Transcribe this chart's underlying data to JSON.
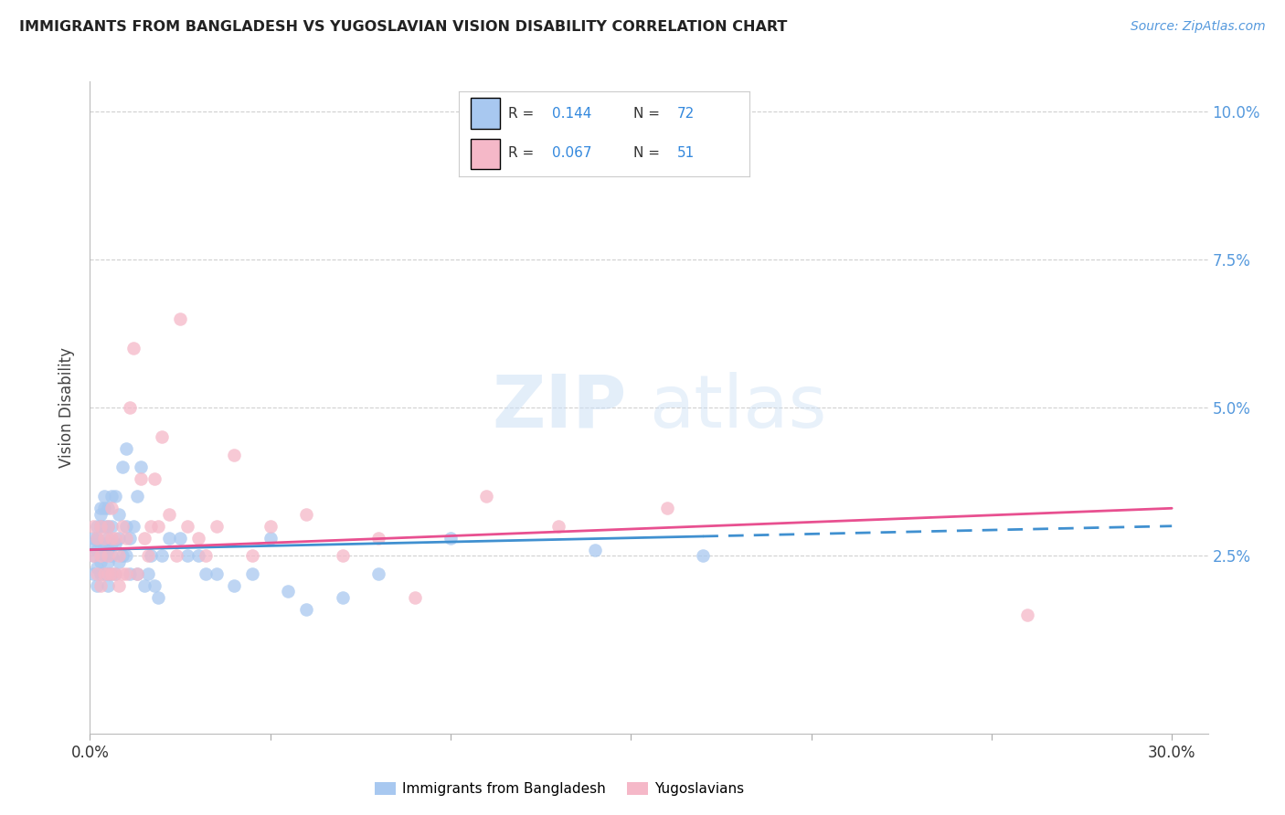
{
  "title": "IMMIGRANTS FROM BANGLADESH VS YUGOSLAVIAN VISION DISABILITY CORRELATION CHART",
  "source": "Source: ZipAtlas.com",
  "ylabel": "Vision Disability",
  "xlim": [
    0.0,
    0.31
  ],
  "ylim": [
    -0.005,
    0.105
  ],
  "yticks": [
    0.025,
    0.05,
    0.075,
    0.1
  ],
  "ytick_labels": [
    "2.5%",
    "5.0%",
    "7.5%",
    "10.0%"
  ],
  "grid_color": "#d0d0d0",
  "background_color": "#ffffff",
  "blue_color": "#a8c8f0",
  "pink_color": "#f5b8c8",
  "blue_line_color": "#4090d0",
  "pink_line_color": "#e85090",
  "r_blue": "0.144",
  "n_blue": "72",
  "r_pink": "0.067",
  "n_pink": "51",
  "legend_label_blue": "Immigrants from Bangladesh",
  "legend_label_pink": "Yugoslavians",
  "watermark_zip": "ZIP",
  "watermark_atlas": "atlas",
  "blue_scatter_x": [
    0.001,
    0.001,
    0.001,
    0.001,
    0.002,
    0.002,
    0.002,
    0.002,
    0.002,
    0.003,
    0.003,
    0.003,
    0.003,
    0.003,
    0.003,
    0.004,
    0.004,
    0.004,
    0.004,
    0.004,
    0.004,
    0.005,
    0.005,
    0.005,
    0.005,
    0.005,
    0.005,
    0.005,
    0.006,
    0.006,
    0.006,
    0.006,
    0.006,
    0.007,
    0.007,
    0.007,
    0.008,
    0.008,
    0.008,
    0.009,
    0.009,
    0.01,
    0.01,
    0.01,
    0.011,
    0.011,
    0.012,
    0.013,
    0.013,
    0.014,
    0.015,
    0.016,
    0.017,
    0.018,
    0.019,
    0.02,
    0.022,
    0.025,
    0.027,
    0.03,
    0.032,
    0.035,
    0.04,
    0.045,
    0.05,
    0.055,
    0.06,
    0.07,
    0.08,
    0.1,
    0.14,
    0.17
  ],
  "blue_scatter_y": [
    0.025,
    0.027,
    0.022,
    0.028,
    0.023,
    0.026,
    0.03,
    0.02,
    0.028,
    0.022,
    0.027,
    0.024,
    0.03,
    0.032,
    0.033,
    0.022,
    0.025,
    0.027,
    0.03,
    0.033,
    0.035,
    0.02,
    0.022,
    0.024,
    0.026,
    0.028,
    0.03,
    0.033,
    0.022,
    0.025,
    0.027,
    0.03,
    0.035,
    0.022,
    0.027,
    0.035,
    0.024,
    0.028,
    0.032,
    0.025,
    0.04,
    0.025,
    0.03,
    0.043,
    0.022,
    0.028,
    0.03,
    0.022,
    0.035,
    0.04,
    0.02,
    0.022,
    0.025,
    0.02,
    0.018,
    0.025,
    0.028,
    0.028,
    0.025,
    0.025,
    0.022,
    0.022,
    0.02,
    0.022,
    0.028,
    0.019,
    0.016,
    0.018,
    0.022,
    0.028,
    0.026,
    0.025
  ],
  "pink_scatter_x": [
    0.001,
    0.001,
    0.002,
    0.002,
    0.003,
    0.003,
    0.003,
    0.004,
    0.004,
    0.005,
    0.005,
    0.005,
    0.006,
    0.006,
    0.006,
    0.007,
    0.007,
    0.008,
    0.008,
    0.009,
    0.009,
    0.01,
    0.01,
    0.011,
    0.012,
    0.013,
    0.014,
    0.015,
    0.016,
    0.017,
    0.018,
    0.019,
    0.02,
    0.022,
    0.024,
    0.025,
    0.027,
    0.03,
    0.032,
    0.035,
    0.04,
    0.045,
    0.05,
    0.06,
    0.07,
    0.08,
    0.09,
    0.11,
    0.13,
    0.16,
    0.26
  ],
  "pink_scatter_y": [
    0.025,
    0.03,
    0.022,
    0.028,
    0.02,
    0.025,
    0.03,
    0.022,
    0.028,
    0.022,
    0.025,
    0.03,
    0.022,
    0.028,
    0.033,
    0.022,
    0.028,
    0.02,
    0.025,
    0.022,
    0.03,
    0.022,
    0.028,
    0.05,
    0.06,
    0.022,
    0.038,
    0.028,
    0.025,
    0.03,
    0.038,
    0.03,
    0.045,
    0.032,
    0.025,
    0.065,
    0.03,
    0.028,
    0.025,
    0.03,
    0.042,
    0.025,
    0.03,
    0.032,
    0.025,
    0.028,
    0.018,
    0.035,
    0.03,
    0.033,
    0.015
  ]
}
